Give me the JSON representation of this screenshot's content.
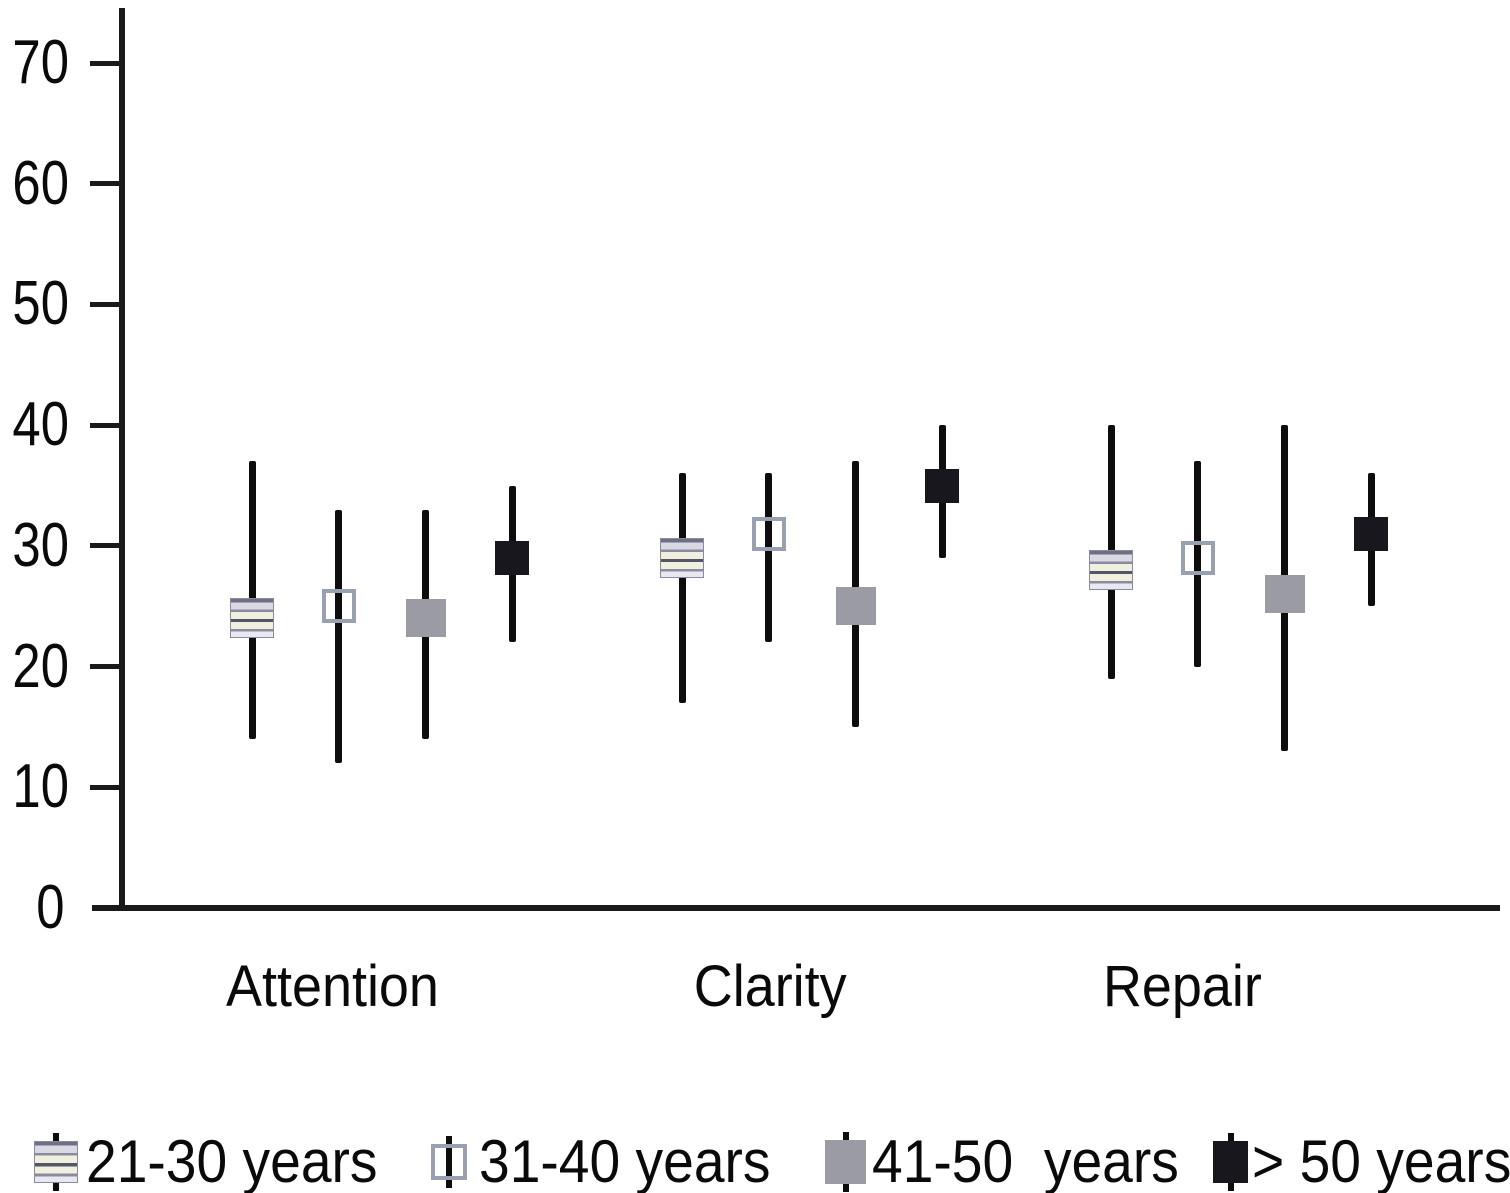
{
  "chart_data": {
    "type": "scatter",
    "variant": "median-with-range-whiskers",
    "title": "",
    "xlabel": "",
    "ylabel": "",
    "grid": false,
    "legend_position": "bottom",
    "categories": [
      "Attention",
      "Clarity",
      "Repair"
    ],
    "yticks": [
      0,
      10,
      20,
      30,
      40,
      50,
      60,
      70
    ],
    "ylim": [
      0,
      73
    ],
    "series": [
      {
        "name": "21-30 years",
        "marker": "striped-square",
        "median": [
          24,
          29,
          28
        ],
        "whisker_low": [
          14,
          17,
          19
        ],
        "whisker_high": [
          37,
          36,
          40
        ]
      },
      {
        "name": "31-40 years",
        "marker": "hollow-square",
        "median": [
          25,
          31,
          29
        ],
        "whisker_low": [
          12,
          22,
          20
        ],
        "whisker_high": [
          33,
          36,
          37
        ]
      },
      {
        "name": "41-50  years",
        "marker": "solid-gray-square",
        "median": [
          24,
          25,
          26
        ],
        "whisker_low": [
          14,
          15,
          13
        ],
        "whisker_high": [
          33,
          37,
          40
        ]
      },
      {
        "name": "> 50 years",
        "marker": "solid-black-square",
        "median": [
          29,
          35,
          31
        ],
        "whisker_low": [
          22,
          29,
          25
        ],
        "whisker_high": [
          35,
          40,
          36
        ]
      }
    ],
    "colors": {
      "whisker": "#0d0d0d",
      "axis": "#1a1a1a",
      "gray_marker": "#9b9ba3",
      "black_marker": "#17171d",
      "hollow_marker_border": "#99a0b2",
      "striped_marker_light": "#f0f0df",
      "striped_marker_body": "#d9d9e4",
      "striped_marker_dark": "#8b8b9f",
      "background": "#ffffff"
    }
  }
}
